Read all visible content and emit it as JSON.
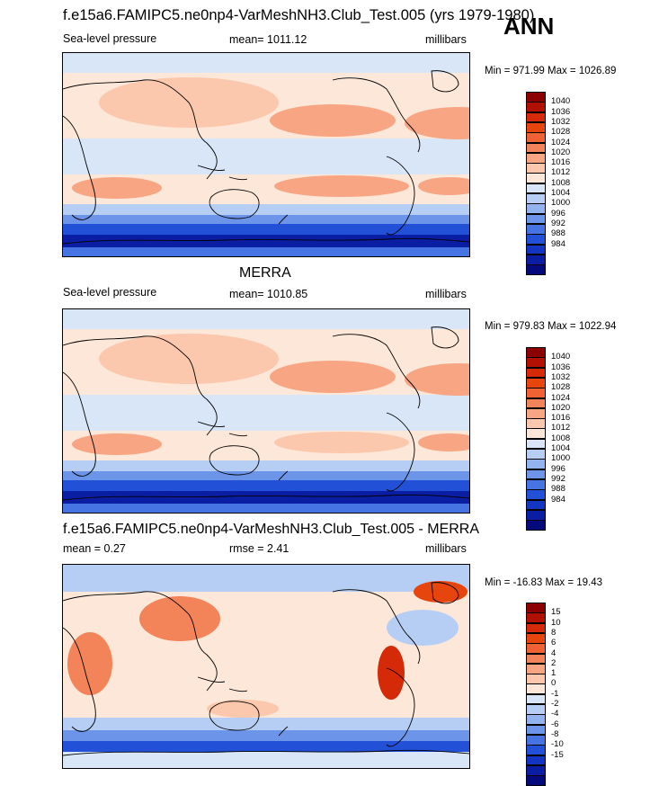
{
  "page_title": "f.e15a6.FAMIPC5.ne0np4-VarMeshNH3.Club_Test.005 (yrs 1979-1980)",
  "season": "ANN",
  "colors": {
    "slp": [
      "#8b0000",
      "#b31004",
      "#d52a08",
      "#e6450e",
      "#f06234",
      "#f3845a",
      "#f7a583",
      "#fbc7ad",
      "#fde7d8",
      "#d8e6f8",
      "#b7cef4",
      "#93b3ee",
      "#6c94e9",
      "#4674e3",
      "#2251d8",
      "#1235c2",
      "#0a1ea3",
      "#04097c"
    ],
    "diff": [
      "#8b0000",
      "#b31004",
      "#d52a08",
      "#e6450e",
      "#f06234",
      "#f3845a",
      "#f7a583",
      "#fbc7ad",
      "#fde7d8",
      "#d8e6f8",
      "#b7cef4",
      "#93b3ee",
      "#6c94e9",
      "#4674e3",
      "#2251d8",
      "#1235c2",
      "#0a1ea3",
      "#04097c"
    ]
  },
  "chart_data": [
    {
      "type": "heatmap",
      "title": "",
      "left_label": "Sea-level pressure",
      "center_label": "mean= 1011.12",
      "right_label": "millibars",
      "min": 971.99,
      "max": 1026.89,
      "minmax_text": "Min = 971.99 Max = 1026.89",
      "colorbar_labels": [
        "1040",
        "1036",
        "1032",
        "1028",
        "1024",
        "1020",
        "1016",
        "1012",
        "1008",
        "1004",
        "1000",
        "996",
        "992",
        "988",
        "984"
      ],
      "mean": 1011.12
    },
    {
      "type": "heatmap",
      "title": "MERRA",
      "left_label": "Sea-level pressure",
      "center_label": "mean= 1010.85",
      "right_label": "millibars",
      "min": 979.83,
      "max": 1022.94,
      "minmax_text": "Min = 979.83 Max = 1022.94",
      "colorbar_labels": [
        "1040",
        "1036",
        "1032",
        "1028",
        "1024",
        "1020",
        "1016",
        "1012",
        "1008",
        "1004",
        "1000",
        "996",
        "992",
        "988",
        "984"
      ],
      "mean": 1010.85
    },
    {
      "type": "heatmap",
      "title": "f.e15a6.FAMIPC5.ne0np4-VarMeshNH3.Club_Test.005 - MERRA",
      "left_label": "mean =   0.27",
      "center_label": "rmse =   2.41",
      "right_label": "millibars",
      "min": -16.83,
      "max": 19.43,
      "minmax_text": "Min = -16.83 Max =  19.43",
      "colorbar_labels": [
        "15",
        "10",
        "8",
        "6",
        "4",
        "2",
        "1",
        "0",
        "-1",
        "-2",
        "-4",
        "-6",
        "-8",
        "-10",
        "-15"
      ],
      "mean": 0.27,
      "rmse": 2.41
    }
  ]
}
